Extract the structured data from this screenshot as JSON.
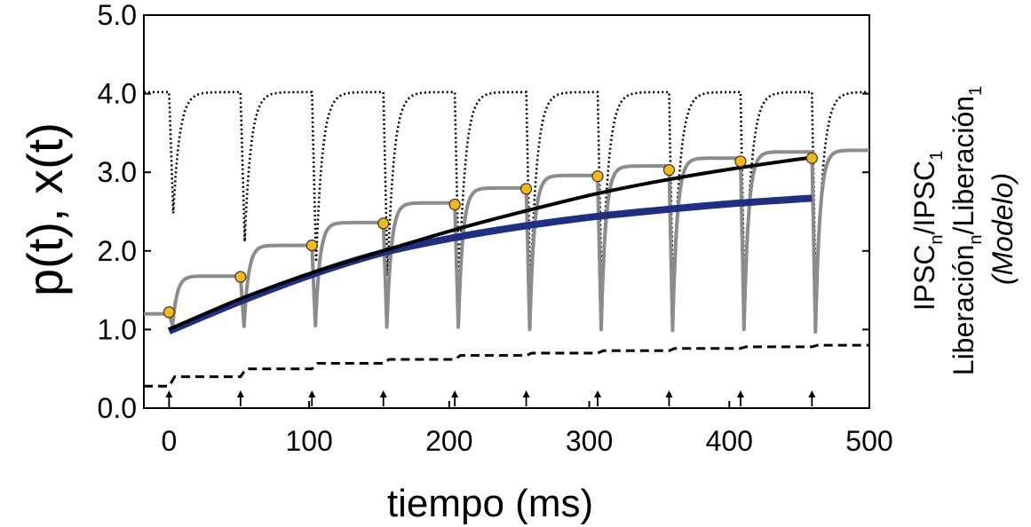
{
  "chart_data": {
    "type": "line",
    "xlabel": "tiempo (ms)",
    "ylabel": "p(t), x(t)",
    "right_label": {
      "line1_base": "IPSC",
      "line1_sub1": "n",
      "line1_mid": "/IPSC",
      "line1_sub2": "1",
      "line2_base": "Liberación",
      "line2_sub1": "n",
      "line2_mid": "/Liberación",
      "line2_sub2": "1",
      "line3": "(Modelo)"
    },
    "xlim": [
      -18,
      500
    ],
    "ylim": [
      0.0,
      5.0
    ],
    "xticks": [
      0,
      100,
      200,
      300,
      400,
      500
    ],
    "xtick_labels": [
      "0",
      "100",
      "200",
      "300",
      "400",
      "500"
    ],
    "yticks": [
      0.0,
      1.0,
      2.0,
      3.0,
      4.0,
      5.0
    ],
    "ytick_labels": [
      "0.0",
      "1.0",
      "2.0",
      "3.0",
      "4.0",
      "5.0"
    ],
    "stimulus_times": [
      0,
      51,
      102,
      153,
      204,
      255,
      306,
      357,
      408,
      459
    ],
    "colors": {
      "gray_trace": "#8c8c8c",
      "black_curve": "#000000",
      "blue_curve": "#1f2f86",
      "markers_fill": "#f5b815",
      "markers_edge": "#333333"
    },
    "series": [
      {
        "style": "markers",
        "x": [
          0,
          51,
          102,
          153,
          204,
          255,
          306,
          357,
          408,
          459
        ],
        "y": [
          1.22,
          1.67,
          2.07,
          2.35,
          2.59,
          2.79,
          2.95,
          3.03,
          3.14,
          3.18
        ]
      },
      {
        "style": "black-solid",
        "x": [
          0,
          51,
          102,
          153,
          204,
          255,
          306,
          357,
          408,
          459
        ],
        "y": [
          1.0,
          1.39,
          1.72,
          2.0,
          2.27,
          2.51,
          2.73,
          2.91,
          3.06,
          3.19
        ]
      },
      {
        "style": "blue-thick",
        "x": [
          0,
          51,
          102,
          153,
          204,
          255,
          306,
          357,
          408,
          459
        ],
        "y": [
          0.98,
          1.36,
          1.7,
          1.98,
          2.17,
          2.32,
          2.44,
          2.53,
          2.61,
          2.67
        ]
      },
      {
        "style": "gray-trace",
        "plateaus": [
          1.2,
          1.68,
          2.07,
          2.36,
          2.61,
          2.8,
          2.96,
          3.08,
          3.18,
          3.26,
          3.28
        ],
        "troughs": [
          1.05,
          1.04,
          1.05,
          1.03,
          1.03,
          1.0,
          1.0,
          0.99,
          1.0,
          0.97
        ]
      },
      {
        "style": "dotted-trace",
        "baseline": 4.02,
        "troughs": [
          2.48,
          2.12,
          1.86,
          1.68,
          1.52,
          1.42,
          1.32,
          1.25,
          1.18,
          1.12
        ]
      },
      {
        "style": "dashed-trace",
        "pre": 0.28,
        "levels": [
          0.4,
          0.5,
          0.57,
          0.62,
          0.67,
          0.7,
          0.73,
          0.76,
          0.78,
          0.8
        ]
      }
    ],
    "grid": false,
    "legend": "none"
  }
}
